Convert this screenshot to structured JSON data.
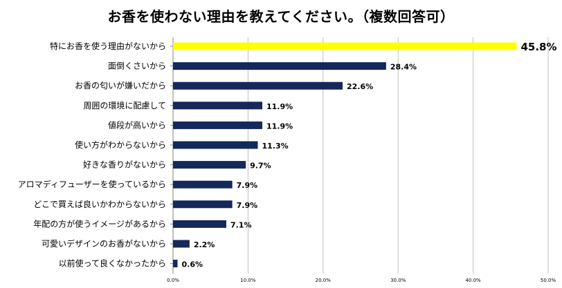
{
  "chart_data": {
    "type": "bar",
    "orientation": "horizontal",
    "title": "お香を使わない理由を教えてください。（複数回答可）",
    "categories": [
      "特にお香を使う理由がないから",
      "面倒くさいから",
      "お香の匂いが嫌いだから",
      "周囲の環境に配慮して",
      "値段が高いから",
      "使い方がわからないから",
      "好きな香りがないから",
      "アロマディフューザーを使っているから",
      "どこで買えば良いかわからないから",
      "年配の方が使うイメージがあるから",
      "可愛いデザインのお香がないから",
      "以前使って良くなかったから"
    ],
    "values": [
      45.8,
      28.4,
      22.6,
      11.9,
      11.9,
      11.3,
      9.7,
      7.9,
      7.9,
      7.1,
      2.2,
      0.6
    ],
    "value_labels": [
      "45.8%",
      "28.4%",
      "22.6%",
      "11.9%",
      "11.9%",
      "11.3%",
      "9.7%",
      "7.9%",
      "7.9%",
      "7.1%",
      "2.2%",
      "0.6%"
    ],
    "xlim": [
      0,
      50
    ],
    "xticks": [
      "0.0%",
      "10.0%",
      "20.0%",
      "30.0%",
      "40.0%",
      "50.0%"
    ],
    "xlabel": "",
    "ylabel": "",
    "grid": true,
    "legend": "none",
    "colors": {
      "bar": "#14285A",
      "highlight": "#FFFF00",
      "grid": "#BFBFBF",
      "axis": "#808080"
    }
  }
}
